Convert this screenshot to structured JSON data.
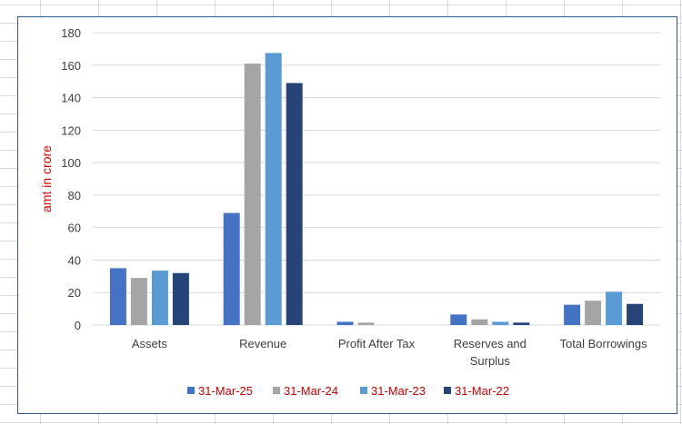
{
  "chart_data": {
    "type": "bar",
    "ylabel": "amt in crore",
    "ylim": [
      0,
      180
    ],
    "yticks": [
      0,
      20,
      40,
      60,
      80,
      100,
      120,
      140,
      160,
      180
    ],
    "grid": true,
    "legend_position": "bottom",
    "categories": [
      [
        "Assets"
      ],
      [
        "Revenue"
      ],
      [
        "Profit After Tax"
      ],
      [
        "Reserves and",
        "Surplus"
      ],
      [
        "Total Borrowings"
      ]
    ],
    "series": [
      {
        "name": "31-Mar-25",
        "color": "#4472c4",
        "values": [
          35,
          69,
          2,
          6.5,
          12.5
        ]
      },
      {
        "name": "31-Mar-24",
        "color": "#a5a5a5",
        "values": [
          29,
          161,
          1.5,
          3.5,
          15
        ]
      },
      {
        "name": "31-Mar-23",
        "color": "#5b9bd5",
        "values": [
          33.5,
          167.5,
          0,
          2,
          20.5
        ]
      },
      {
        "name": "31-Mar-22",
        "color": "#264478",
        "values": [
          32,
          149,
          0,
          1.5,
          13
        ]
      }
    ]
  }
}
